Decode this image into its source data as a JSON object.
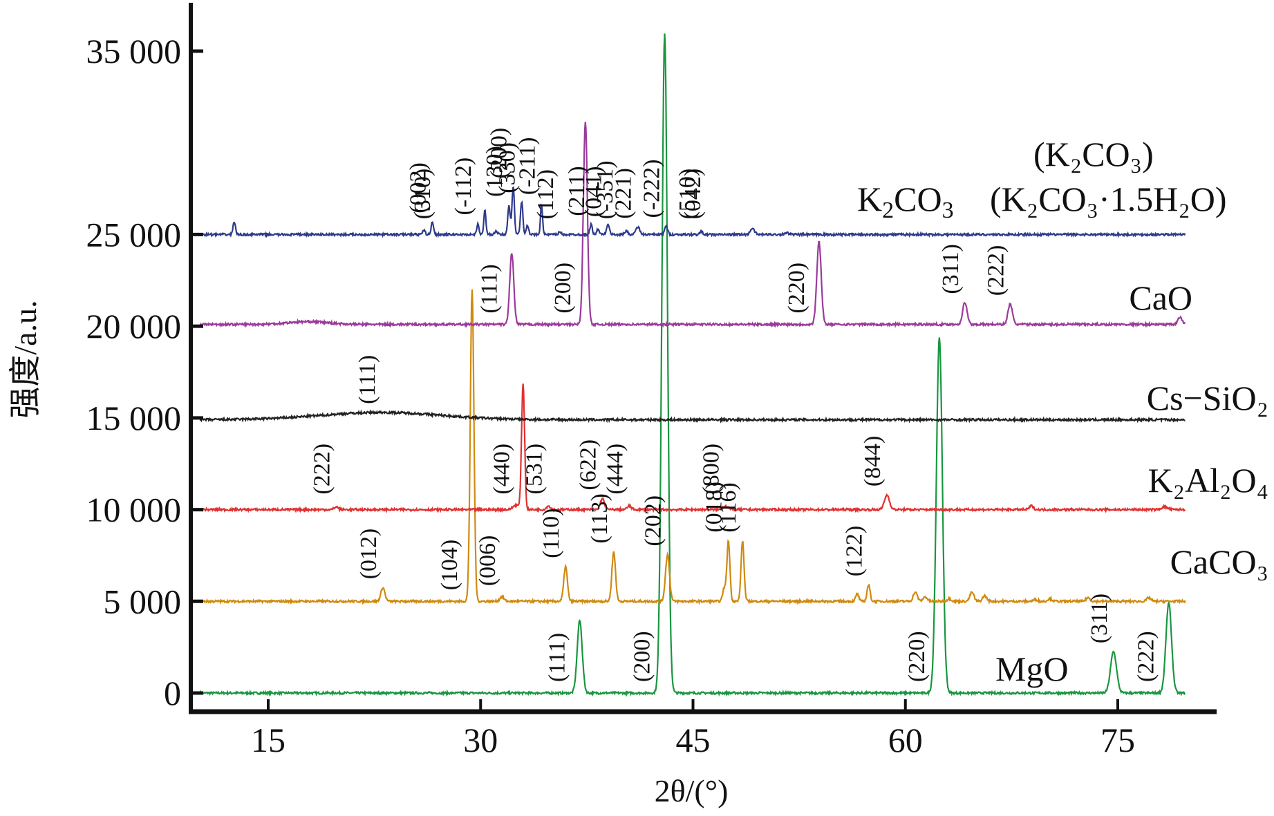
{
  "chart_data": {
    "type": "line",
    "title": "",
    "xlabel": "2θ/(°)",
    "ylabel": "强度/a.u.",
    "xlim": [
      10,
      80
    ],
    "ylim": [
      -1000,
      37000
    ],
    "xticks": [
      15,
      30,
      45,
      60,
      75
    ],
    "xtick_labels": [
      "15",
      "30",
      "45",
      "60",
      "75"
    ],
    "yticks": [
      0,
      5000,
      20000,
      25000,
      35000,
      10000,
      15000
    ],
    "ytick_labels": {
      "0": "0",
      "5000": "5 000",
      "10000": "10 000",
      "15000": "15 000",
      "20000": "20 000",
      "25000": "25 000",
      "35000": "35 000"
    },
    "grid": false,
    "legend": "none (series labeled inline at right)",
    "series": [
      {
        "name": "MgO",
        "label": "MgO",
        "color": "#1a9641",
        "baseline": 0,
        "peaks": [
          [
            37.0,
            3950,
            0.25
          ],
          [
            43.0,
            35900,
            0.28
          ],
          [
            62.4,
            19400,
            0.3
          ],
          [
            74.7,
            2250,
            0.3
          ],
          [
            78.6,
            4900,
            0.28
          ]
        ],
        "hkl": [
          {
            "x": 37.0,
            "text": "(111)"
          },
          {
            "x": 43.0,
            "text": "(200)"
          },
          {
            "x": 62.4,
            "text": "(220)"
          },
          {
            "x": 74.7,
            "text": "(311)"
          },
          {
            "x": 78.6,
            "text": "(222)"
          }
        ]
      },
      {
        "name": "CaCO3",
        "label": "CaCO₃",
        "color": "#d08a10",
        "baseline": 5000,
        "peaks": [
          [
            23.1,
            750,
            0.2
          ],
          [
            29.4,
            16950,
            0.18
          ],
          [
            31.5,
            250,
            0.2
          ],
          [
            36.0,
            1900,
            0.18
          ],
          [
            39.4,
            2700,
            0.18
          ],
          [
            43.2,
            2550,
            0.2
          ],
          [
            47.2,
            700,
            0.15
          ],
          [
            47.5,
            3300,
            0.15
          ],
          [
            48.5,
            3300,
            0.15
          ],
          [
            56.6,
            400,
            0.15
          ],
          [
            57.4,
            900,
            0.15
          ],
          [
            60.7,
            500,
            0.2
          ],
          [
            61.4,
            250,
            0.2
          ],
          [
            63.1,
            150,
            0.2
          ],
          [
            64.7,
            500,
            0.2
          ],
          [
            65.6,
            300,
            0.2
          ],
          [
            69.2,
            100,
            0.2
          ],
          [
            70.2,
            150,
            0.2
          ],
          [
            72.9,
            200,
            0.2
          ],
          [
            77.2,
            200,
            0.2
          ]
        ],
        "hkl": [
          {
            "x": 23.1,
            "text": "(012)"
          },
          {
            "x": 29.4,
            "text": "(104)"
          },
          {
            "x": 31.5,
            "text": "(006)"
          },
          {
            "x": 36.0,
            "text": "(110)"
          },
          {
            "x": 39.4,
            "text": "(113)"
          },
          {
            "x": 43.2,
            "text": "(202)"
          },
          {
            "x": 47.5,
            "text": "(018)"
          },
          {
            "x": 48.5,
            "text": "(116)"
          },
          {
            "x": 57.4,
            "text": "(122)"
          }
        ]
      },
      {
        "name": "K2Al2O4",
        "label": "K₂Al₂O₄",
        "color": "#e03030",
        "baseline": 10000,
        "peaks": [
          [
            19.8,
            150,
            0.2
          ],
          [
            32.5,
            250,
            0.3
          ],
          [
            33.0,
            6900,
            0.15
          ],
          [
            34.8,
            200,
            0.2
          ],
          [
            38.6,
            600,
            0.2
          ],
          [
            40.5,
            200,
            0.2
          ],
          [
            47.3,
            200,
            0.25
          ],
          [
            58.7,
            800,
            0.25
          ],
          [
            68.9,
            200,
            0.2
          ],
          [
            78.3,
            150,
            0.3
          ]
        ],
        "hkl": [
          {
            "x": 19.8,
            "text": "(222)"
          },
          {
            "x": 32.5,
            "text": "(440)"
          },
          {
            "x": 34.8,
            "text": "(531)"
          },
          {
            "x": 38.6,
            "text": "(622)"
          },
          {
            "x": 40.5,
            "text": "(444)"
          },
          {
            "x": 47.3,
            "text": "(800)"
          },
          {
            "x": 58.7,
            "text": "(844)"
          }
        ]
      },
      {
        "name": "Cs-SiO2",
        "label": "Cs−SiO₂",
        "color": "#222222",
        "baseline": 14900,
        "peaks": [
          [
            23.0,
            400,
            6.0
          ]
        ],
        "hkl": [
          {
            "x": 23.0,
            "text": "(111)"
          }
        ]
      },
      {
        "name": "CaO",
        "label": "CaO",
        "color": "#9b3a9b",
        "baseline": 20100,
        "peaks": [
          [
            17.8,
            150,
            2.0
          ],
          [
            32.2,
            3900,
            0.2
          ],
          [
            37.4,
            11100,
            0.2
          ],
          [
            53.9,
            4500,
            0.22
          ],
          [
            64.2,
            1200,
            0.22
          ],
          [
            67.4,
            1100,
            0.22
          ],
          [
            79.4,
            400,
            0.2
          ]
        ],
        "hkl": [
          {
            "x": 32.2,
            "text": "(111)"
          },
          {
            "x": 37.4,
            "text": "(200)"
          },
          {
            "x": 53.9,
            "text": "(220)"
          },
          {
            "x": 64.2,
            "text": "(311)"
          },
          {
            "x": 67.4,
            "text": "(222)"
          }
        ]
      },
      {
        "name": "K2CO3",
        "label": "K₂CO₃",
        "color": "#2e3a8c",
        "baseline": 25000,
        "peaks": [
          [
            12.6,
            700,
            0.12
          ],
          [
            26.0,
            250,
            0.12
          ],
          [
            26.6,
            700,
            0.12
          ],
          [
            29.8,
            600,
            0.1
          ],
          [
            30.3,
            1400,
            0.1
          ],
          [
            31.1,
            200,
            0.12
          ],
          [
            32.0,
            1600,
            0.12
          ],
          [
            32.3,
            2600,
            0.12
          ],
          [
            32.9,
            1800,
            0.12
          ],
          [
            33.3,
            500,
            0.12
          ],
          [
            34.3,
            1700,
            0.1
          ],
          [
            35.6,
            150,
            0.12
          ],
          [
            37.8,
            550,
            0.12
          ],
          [
            38.3,
            300,
            0.12
          ],
          [
            39.0,
            500,
            0.15
          ],
          [
            40.3,
            200,
            0.15
          ],
          [
            41.1,
            400,
            0.2
          ],
          [
            43.1,
            450,
            0.15
          ],
          [
            45.6,
            150,
            0.15
          ],
          [
            49.2,
            350,
            0.2
          ],
          [
            51.6,
            100,
            0.2
          ]
        ],
        "hkl": [
          {
            "x": 26.6,
            "text": "(002)"
          },
          {
            "x": 26.9,
            "text": "(310)"
          },
          {
            "x": 29.8,
            "text": "(-112)"
          },
          {
            "x": 32.0,
            "text": "(130)"
          },
          {
            "x": 32.3,
            "text": "(200)"
          },
          {
            "x": 32.9,
            "text": "(330)"
          },
          {
            "x": 34.3,
            "text": "(-211)"
          },
          {
            "x": 35.6,
            "text": "(112)"
          },
          {
            "x": 37.8,
            "text": "(211)"
          },
          {
            "x": 39.0,
            "text": "(041)"
          },
          {
            "x": 39.8,
            "text": "(-351)"
          },
          {
            "x": 41.1,
            "text": "(221)"
          },
          {
            "x": 43.1,
            "text": "(-222)"
          },
          {
            "x": 45.6,
            "text": "(510)"
          },
          {
            "x": 46.0,
            "text": "(042)"
          }
        ]
      }
    ],
    "annotations": [
      {
        "text": "(K₂CO₃)",
        "series": "K2CO3"
      },
      {
        "text": "(K₂CO₃·1.5H₂O)",
        "series": "K2CO3"
      }
    ]
  }
}
